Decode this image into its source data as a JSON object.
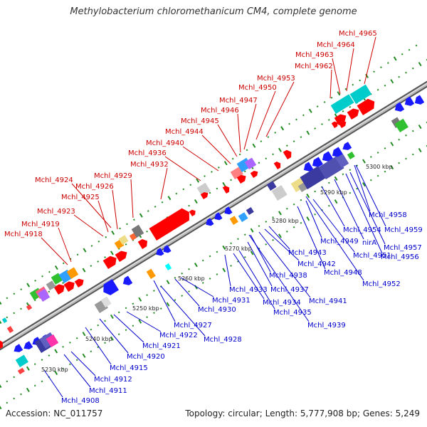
{
  "title": "Methylobacterium chloromethanicum CM4, complete genome",
  "footer": {
    "accession_prefix": "Accession:",
    "accession": "NC_011757",
    "topology_prefix": "Topology:",
    "topology": "circular",
    "length_prefix": "Length:",
    "length": "5,777,908 bp",
    "genes_prefix": "Genes:",
    "genes": "5,249"
  },
  "colors": {
    "forward_label": "#cc0000",
    "reverse_label": "#0000cc",
    "forward_gene": "#ff0000",
    "reverse_gene": "#1a1aff",
    "backbone": "#999999",
    "tick_major": "#228b22"
  },
  "kbp_ticks": [
    "5230 kbp",
    "5240 kbp",
    "5250 kbp",
    "5260 kbp",
    "5270 kbp",
    "5280 kbp",
    "5290 kbp",
    "5300 kbp"
  ],
  "forward_labels": [
    "Mchl_4918",
    "Mchl_4919",
    "Mchl_4923",
    "Mchl_4925",
    "Mchl_4926",
    "Mchl_4924",
    "Mchl_4929",
    "Mchl_4932",
    "Mchl_4936",
    "Mchl_4940",
    "Mchl_4944",
    "Mchl_4945",
    "Mchl_4946",
    "Mchl_4947",
    "Mchl_4950",
    "Mchl_4953",
    "Mchl_4962",
    "Mchl_4963",
    "Mchl_4964",
    "Mchl_4965"
  ],
  "reverse_labels": [
    "Mchl_4908",
    "Mchl_4911",
    "Mchl_4912",
    "Mchl_4915",
    "Mchl_4920",
    "Mchl_4921",
    "Mchl_4922",
    "Mchl_4927",
    "Mchl_4928",
    "Mchl_4930",
    "Mchl_4931",
    "Mchl_4933",
    "Mchl_4934",
    "Mchl_4935",
    "Mchl_4937",
    "Mchl_4938",
    "Mchl_4939",
    "Mchl_4941",
    "Mchl_4942",
    "Mchl_4943",
    "Mchl_4948",
    "Mchl_4949",
    "Mchl_4951",
    "Mchl_4952",
    "Mchl_4954",
    "nirA",
    "Mchl_4956",
    "Mchl_4957",
    "Mchl_4958",
    "Mchl_4959"
  ]
}
